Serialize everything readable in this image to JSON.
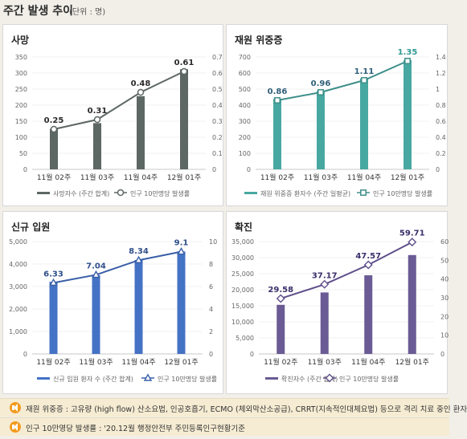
{
  "header": {
    "title": "주간 발생 추이",
    "unit": "(단위 : 명)"
  },
  "chart_data": [
    {
      "title": "사망",
      "type": "bar+line",
      "categories": [
        "11월 02주",
        "11월 03주",
        "11월 04주",
        "12월 01주"
      ],
      "series": [
        {
          "name": "사망자수 (주간 합계)",
          "type": "bar",
          "axis": "left",
          "values": [
            126,
            144,
            228,
            312
          ]
        },
        {
          "name": "인구 10만명당 발생률",
          "type": "line",
          "axis": "right",
          "values": [
            0.25,
            0.31,
            0.48,
            0.61
          ],
          "labels": [
            "0.25",
            "0.31",
            "0.48",
            "0.61"
          ]
        }
      ],
      "yleft_ticks": [
        "0",
        "50",
        "100",
        "150",
        "200",
        "250",
        "300",
        "350"
      ],
      "yleft_lim": [
        0,
        350
      ],
      "yright_ticks": [
        "0",
        "0.1",
        "0.2",
        "0.3",
        "0.4",
        "0.5",
        "0.6",
        "0.7"
      ],
      "yright_lim": [
        0,
        0.7
      ],
      "bar_color": "#5d6764",
      "line_color": "#5d6764",
      "marker": "circle",
      "label_color": "#2b2b2b"
    },
    {
      "title": "재원 위중증",
      "type": "bar+line",
      "categories": [
        "11월 02주",
        "11월 03주",
        "11월 04주",
        "12월 01주"
      ],
      "series": [
        {
          "name": "재원 위중증 환자수 (주간 일평균)",
          "type": "bar",
          "axis": "left",
          "values": [
            440,
            490,
            566,
            681
          ]
        },
        {
          "name": "인구 10만명당 발생률",
          "type": "line",
          "axis": "right",
          "values": [
            0.86,
            0.96,
            1.11,
            1.35
          ],
          "labels": [
            "0.86",
            "0.96",
            "1.11",
            "1.35"
          ]
        }
      ],
      "yleft_ticks": [
        "0",
        "100",
        "200",
        "300",
        "400",
        "500",
        "600",
        "700"
      ],
      "yleft_lim": [
        0,
        700
      ],
      "yright_ticks": [
        "0",
        "0.2",
        "0.4",
        "0.6",
        "0.8",
        "1",
        "1.2",
        "1.4"
      ],
      "yright_lim": [
        0,
        1.4
      ],
      "bar_color": "#47a8a1",
      "line_color": "#3e8f8a",
      "marker": "square",
      "label_color": "#2f5f7a",
      "top_label_color": "#2f9a93"
    },
    {
      "title": "신규 입원",
      "type": "bar+line",
      "categories": [
        "11월 02주",
        "11월 03주",
        "11월 04주",
        "12월 01주"
      ],
      "series": [
        {
          "name": "신규 입원 환자 수 (주간 합계)",
          "type": "bar",
          "axis": "left",
          "values": [
            3210,
            3500,
            4180,
            4560
          ]
        },
        {
          "name": "인구 10만명당 발생률",
          "type": "line",
          "axis": "right",
          "values": [
            6.33,
            7.04,
            8.34,
            9.1
          ],
          "labels": [
            "6.33",
            "7.04",
            "8.34",
            "9.1"
          ]
        }
      ],
      "yleft_ticks": [
        "0",
        "1,000",
        "2,000",
        "3,000",
        "4,000",
        "5,000"
      ],
      "yleft_lim": [
        0,
        5000
      ],
      "yright_ticks": [
        "0",
        "2",
        "4",
        "6",
        "8",
        "10"
      ],
      "yright_lim": [
        0,
        10
      ],
      "bar_color": "#4472c4",
      "line_color": "#3a5fa8",
      "marker": "triangle",
      "label_color": "#2f4f8a"
    },
    {
      "title": "확진",
      "type": "bar+line",
      "categories": [
        "11월 02주",
        "11월 03주",
        "11월 04주",
        "12월 01주"
      ],
      "series": [
        {
          "name": "확진자수 (주간 합계)",
          "type": "bar",
          "axis": "left",
          "values": [
            15300,
            19150,
            24500,
            30800
          ]
        },
        {
          "name": "인구 10만명당 발생률",
          "type": "line",
          "axis": "right",
          "values": [
            29.58,
            37.17,
            47.57,
            59.71
          ],
          "labels": [
            "29.58",
            "37.17",
            "47.57",
            "59.71"
          ]
        }
      ],
      "yleft_ticks": [
        "0",
        "5,000",
        "10,000",
        "15,000",
        "20,000",
        "25,000",
        "30,000",
        "35,000"
      ],
      "yleft_lim": [
        0,
        35000
      ],
      "yright_ticks": [
        "0",
        "10",
        "20",
        "30",
        "40",
        "50",
        "60"
      ],
      "yright_lim": [
        0,
        60
      ],
      "bar_color": "#6a5b94",
      "line_color": "#5f4f8a",
      "marker": "diamond",
      "label_color": "#3b2f6a"
    }
  ],
  "notes": [
    {
      "icon": "speaker-icon",
      "text": "재원 위중증 : 고유량 (high flow) 산소요법, 인공호흡기, ECMO (체외막산소공급), CRRT(지속적인대체요법) 등으로 격리 치료 중인 환자"
    },
    {
      "icon": "speaker-icon",
      "text": "인구 10만명당 발생률 : '20.12월 행정안전부 주민등록인구현황기준"
    }
  ],
  "colors": {
    "background": "#f1efe8",
    "panel": "#ffffff",
    "note_bg": "#f6ecd3",
    "note_icon": "#f39a1e"
  }
}
